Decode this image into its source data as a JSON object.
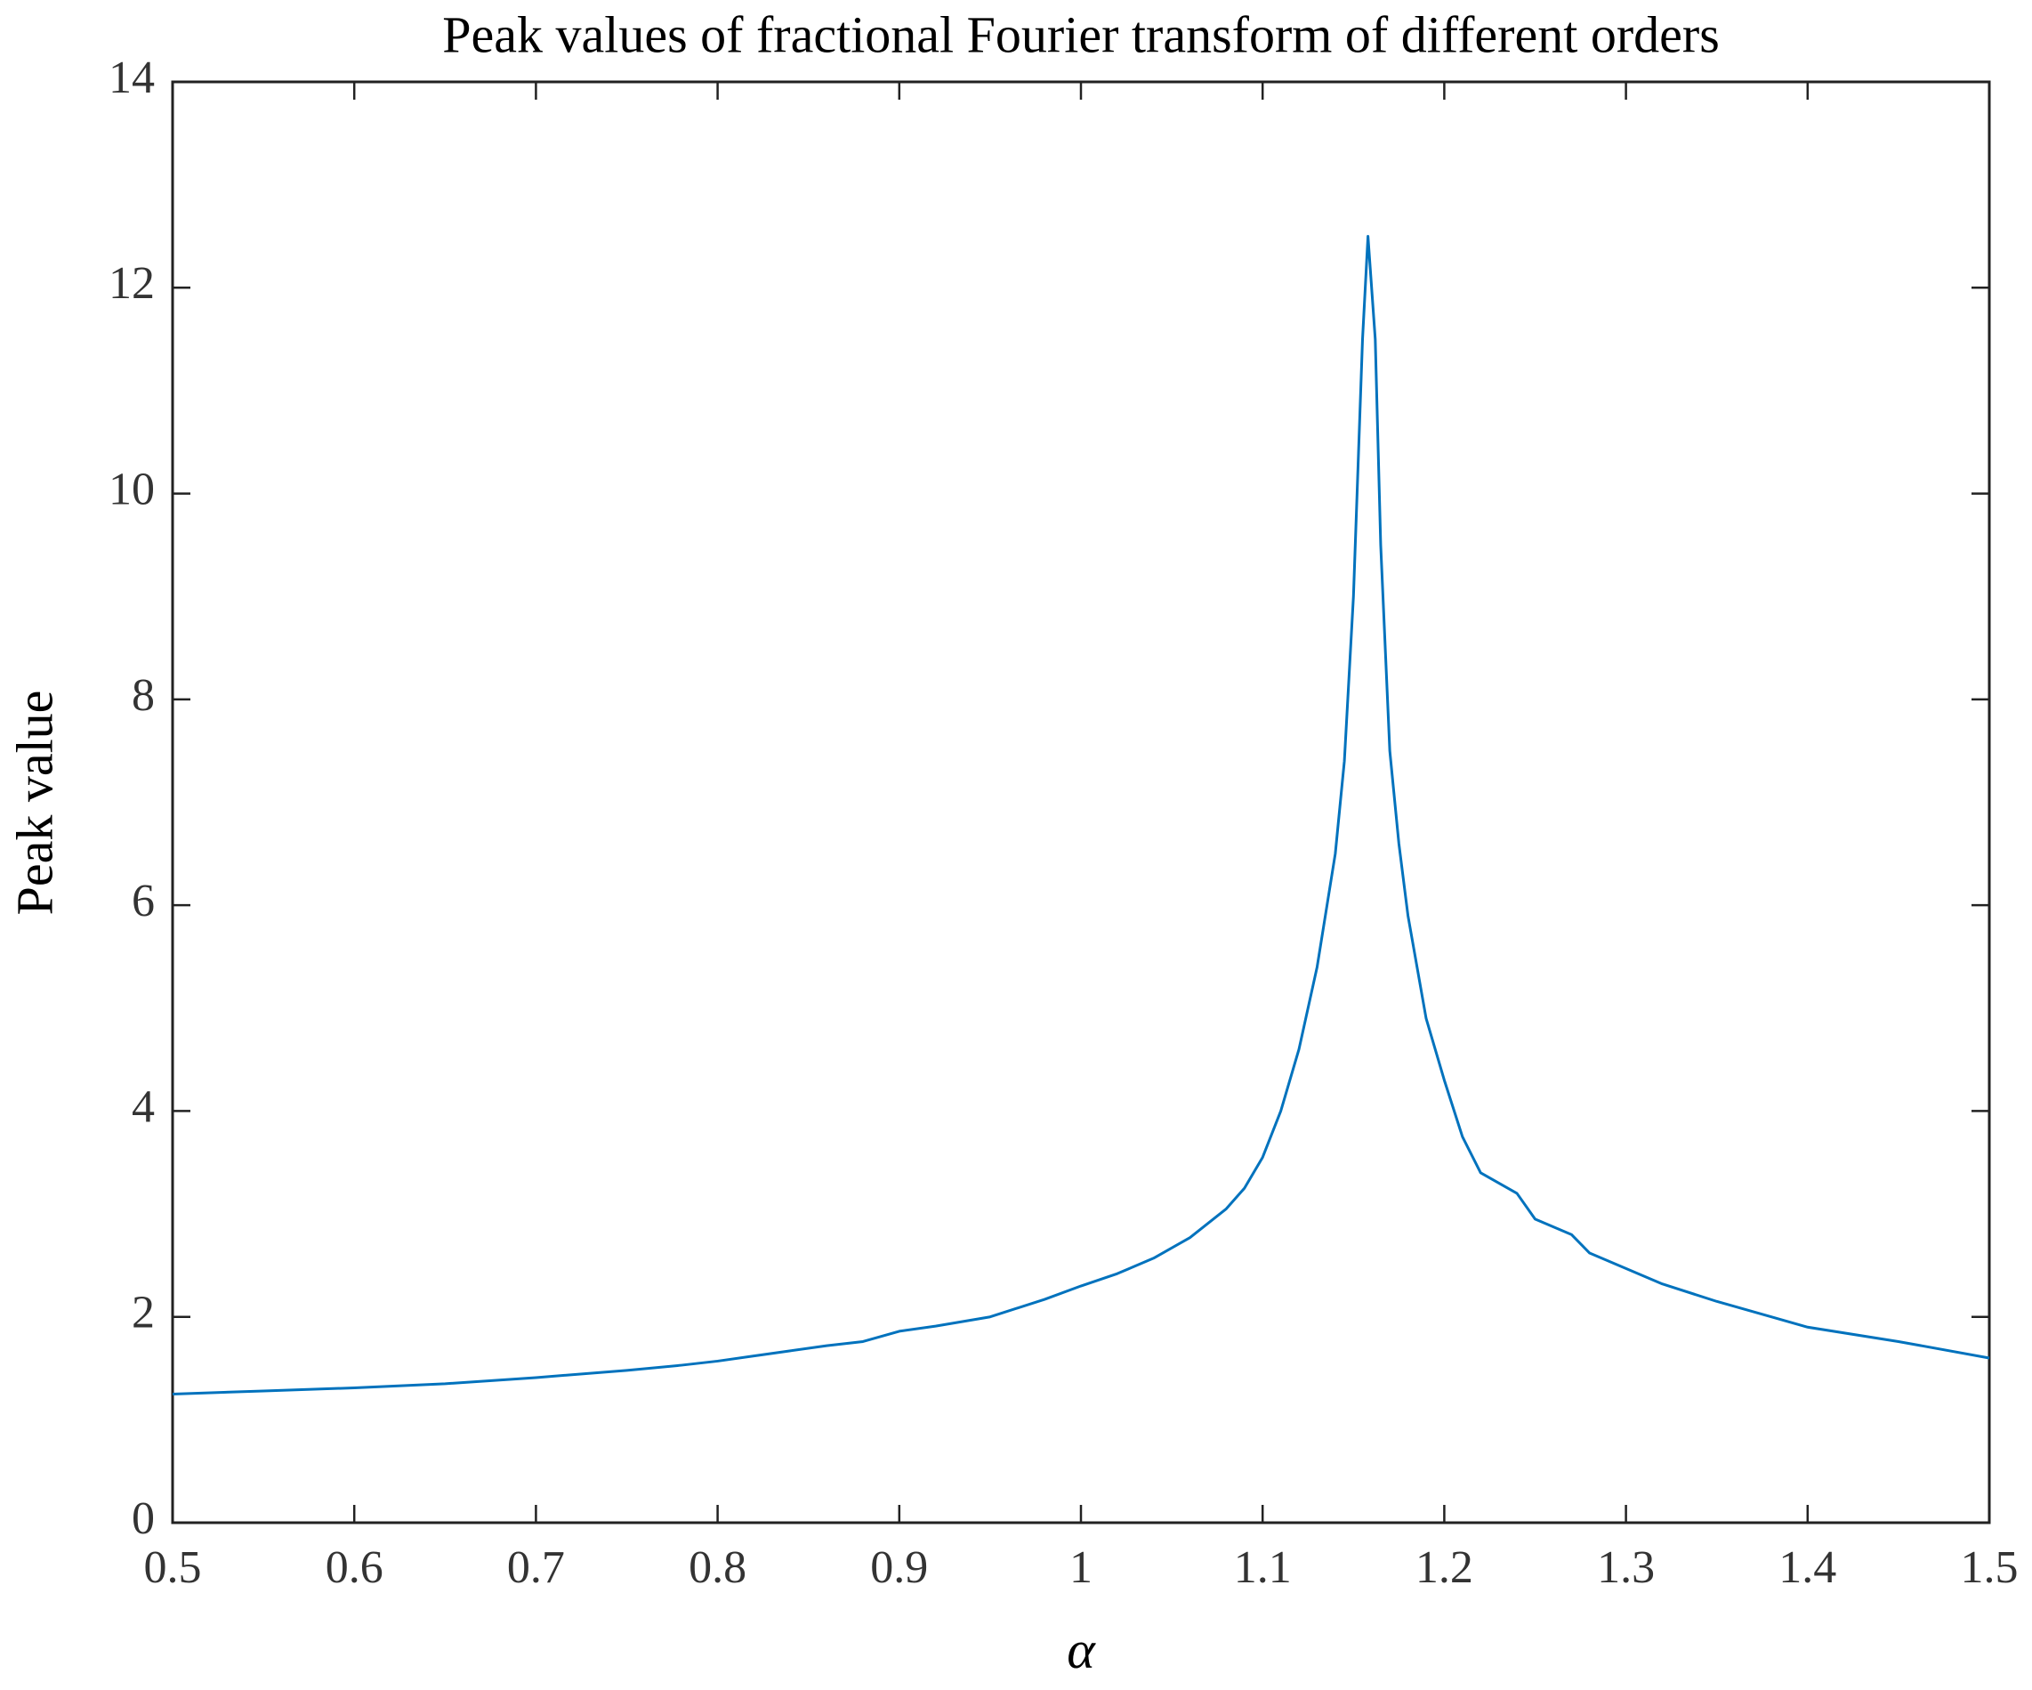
{
  "chart_data": {
    "type": "line",
    "title": "Peak values of fractional Fourier transform of different orders",
    "x_label": "α",
    "y_label": "Peak value",
    "x": [
      0.5,
      0.55,
      0.6,
      0.65,
      0.7,
      0.75,
      0.78,
      0.8,
      0.82,
      0.84,
      0.86,
      0.88,
      0.9,
      0.92,
      0.95,
      0.98,
      1.0,
      1.02,
      1.04,
      1.06,
      1.08,
      1.09,
      1.1,
      1.11,
      1.12,
      1.13,
      1.14,
      1.145,
      1.15,
      1.155,
      1.158,
      1.162,
      1.165,
      1.17,
      1.175,
      1.18,
      1.19,
      1.2,
      1.21,
      1.22,
      1.24,
      1.25,
      1.27,
      1.28,
      1.3,
      1.32,
      1.35,
      1.38,
      1.4,
      1.45,
      1.5
    ],
    "series": [
      {
        "name": "Peak value",
        "color": "#0072bd",
        "values": [
          1.25,
          1.28,
          1.31,
          1.35,
          1.41,
          1.48,
          1.53,
          1.57,
          1.62,
          1.67,
          1.72,
          1.76,
          1.86,
          1.91,
          2.0,
          2.17,
          2.3,
          2.42,
          2.57,
          2.77,
          3.05,
          3.25,
          3.55,
          4.0,
          4.6,
          5.4,
          6.5,
          7.4,
          9.0,
          11.5,
          12.5,
          11.5,
          9.5,
          7.5,
          6.6,
          5.9,
          4.9,
          4.3,
          3.75,
          3.4,
          3.2,
          2.95,
          2.8,
          2.62,
          2.47,
          2.32,
          2.15,
          2.0,
          1.9,
          1.76,
          1.6
        ]
      }
    ],
    "xlim": [
      0.5,
      1.5
    ],
    "xticks": [
      0.5,
      0.6,
      0.7,
      0.8,
      0.9,
      1,
      1.1,
      1.2,
      1.3,
      1.4,
      1.5
    ],
    "ylim": [
      0,
      14
    ],
    "yticks": [
      0,
      2,
      4,
      6,
      8,
      10,
      12,
      14
    ],
    "grid": false
  }
}
